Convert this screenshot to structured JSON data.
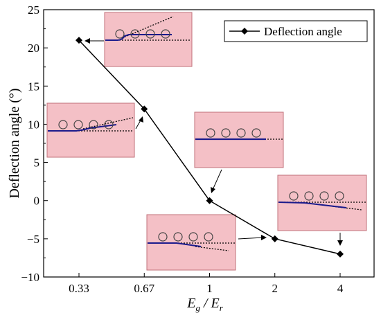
{
  "chart_data": {
    "type": "line",
    "categories": [
      "0.33",
      "0.67",
      "1",
      "2",
      "4"
    ],
    "series": [
      {
        "name": "Deflection angle",
        "values": [
          21,
          12,
          0,
          -5,
          -7
        ]
      }
    ],
    "title": "",
    "xlabel_main": "E",
    "xlabel_sub1": "g",
    "xlabel_mid": " / E",
    "xlabel_sub2": "r",
    "ylabel": "Deflection angle (°)",
    "ylim": [
      -10,
      25
    ],
    "yticks": [
      "25",
      "20",
      "15",
      "10",
      "5",
      "0",
      "−5",
      "−10"
    ],
    "ytick_values": [
      25,
      20,
      15,
      10,
      5,
      0,
      -5,
      -10
    ],
    "grid": false,
    "legend_position": "top-right",
    "marker": "diamond",
    "colors": {
      "line": "#000000",
      "inset_fill": "#f4c0c6",
      "inset_border": "#c0707a",
      "inset_line": "#1a1a8c"
    }
  }
}
